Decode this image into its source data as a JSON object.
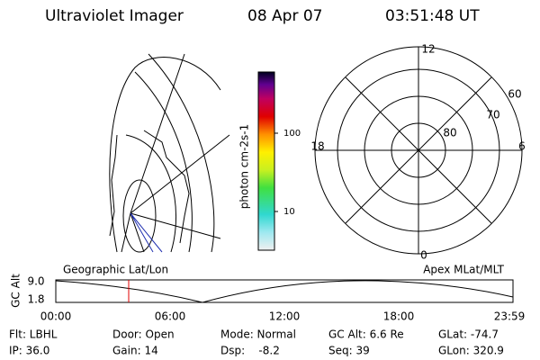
{
  "header": {
    "instrument": "Ultraviolet Imager",
    "date": "08 Apr 07",
    "time": "03:51:48 UT"
  },
  "colorbar": {
    "label": "photon cm-2s-1",
    "ticks": [
      "100",
      "10"
    ]
  },
  "polar": {
    "mlt_labels": [
      "12",
      "18",
      "6",
      "0"
    ],
    "lat_labels": [
      "60",
      "70",
      "80"
    ]
  },
  "timeline": {
    "left_title": "Geographic Lat/Lon",
    "right_title": "Apex MLat/MLT",
    "y_label": "GC Alt",
    "y_ticks": [
      "9.0",
      "1.8"
    ],
    "x_ticks": [
      "00:00",
      "06:00",
      "12:00",
      "18:00",
      "23:59"
    ]
  },
  "status": {
    "rows": [
      [
        "Flt: LBHL",
        "Door: Open",
        "Mode: Normal",
        "GC Alt: 6.6 Re",
        "GLat: -74.7"
      ],
      [
        "IP: 36.0",
        "Gain: 14",
        "Dsp:    -8.2",
        "Seq: 39",
        "GLon: 320.9"
      ]
    ]
  }
}
